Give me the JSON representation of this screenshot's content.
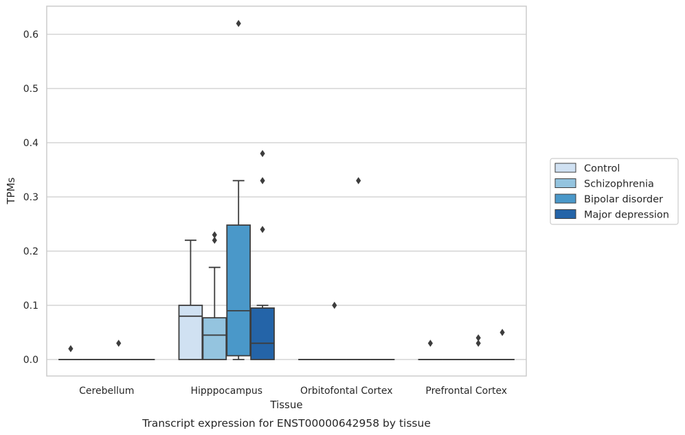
{
  "chart_data": {
    "type": "box",
    "xlabel": "Tissue",
    "ylabel": "TPMs",
    "caption": "Transcript expression for ENST00000642958 by tissue",
    "ylim": [
      -0.03,
      0.65
    ],
    "yticks": [
      "0.0",
      "0.1",
      "0.2",
      "0.3",
      "0.4",
      "0.5",
      "0.6"
    ],
    "grid": true,
    "legend_position": "right",
    "categories": [
      "Cerebellum",
      "Hipppocampus",
      "Orbitofontal Cortex",
      "Prefrontal Cortex"
    ],
    "series": [
      {
        "name": "Control",
        "color": "#d0e1f2",
        "boxes": [
          {
            "q1": 0,
            "median": 0,
            "q3": 0,
            "whislo": 0,
            "whishi": 0,
            "fliers": [
              0.02
            ]
          },
          {
            "q1": 0,
            "median": 0.08,
            "q3": 0.1,
            "whislo": 0,
            "whishi": 0.22,
            "fliers": []
          },
          {
            "q1": 0,
            "median": 0,
            "q3": 0,
            "whislo": 0,
            "whishi": 0,
            "fliers": []
          },
          {
            "q1": 0,
            "median": 0,
            "q3": 0,
            "whislo": 0,
            "whishi": 0,
            "fliers": [
              0.03
            ]
          }
        ]
      },
      {
        "name": "Schizophrenia",
        "color": "#94c4df",
        "boxes": [
          {
            "q1": 0,
            "median": 0,
            "q3": 0,
            "whislo": 0,
            "whishi": 0,
            "fliers": []
          },
          {
            "q1": 0,
            "median": 0.045,
            "q3": 0.077,
            "whislo": 0,
            "whishi": 0.17,
            "fliers": [
              0.22,
              0.23
            ]
          },
          {
            "q1": 0,
            "median": 0,
            "q3": 0,
            "whislo": 0,
            "whishi": 0,
            "fliers": [
              0.1
            ]
          },
          {
            "q1": 0,
            "median": 0,
            "q3": 0,
            "whislo": 0,
            "whishi": 0,
            "fliers": []
          }
        ]
      },
      {
        "name": "Bipolar disorder",
        "color": "#4a98c9",
        "boxes": [
          {
            "q1": 0,
            "median": 0,
            "q3": 0,
            "whislo": 0,
            "whishi": 0,
            "fliers": [
              0.03
            ]
          },
          {
            "q1": 0.007,
            "median": 0.09,
            "q3": 0.248,
            "whislo": 0,
            "whishi": 0.33,
            "fliers": [
              0.62
            ]
          },
          {
            "q1": 0,
            "median": 0,
            "q3": 0,
            "whislo": 0,
            "whishi": 0,
            "fliers": [
              0.33
            ]
          },
          {
            "q1": 0,
            "median": 0,
            "q3": 0,
            "whislo": 0,
            "whishi": 0,
            "fliers": [
              0.03,
              0.04
            ]
          }
        ]
      },
      {
        "name": "Major depression",
        "color": "#2464a8",
        "boxes": [
          {
            "q1": 0,
            "median": 0,
            "q3": 0,
            "whislo": 0,
            "whishi": 0,
            "fliers": []
          },
          {
            "q1": 0,
            "median": 0.03,
            "q3": 0.095,
            "whislo": 0,
            "whishi": 0.1,
            "fliers": [
              0.24,
              0.33,
              0.38
            ]
          },
          {
            "q1": 0,
            "median": 0,
            "q3": 0,
            "whislo": 0,
            "whishi": 0,
            "fliers": []
          },
          {
            "q1": 0,
            "median": 0,
            "q3": 0,
            "whislo": 0,
            "whishi": 0,
            "fliers": [
              0.05
            ]
          }
        ]
      }
    ]
  }
}
